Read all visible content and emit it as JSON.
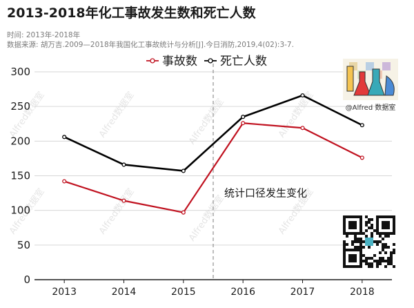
{
  "title": "2013-2018年化工事故发生数和死亡人数",
  "subtitle_time": "时间: 2013年-2018年",
  "subtitle_source": "数据来源: 胡万吉.2009—2018年我国化工事故统计与分析[J].今日消防,2019,4(02):3-7.",
  "logo_caption": "@Alfred 数据室",
  "watermark_text": "Alfred数据室",
  "chart_data": {
    "type": "line",
    "categories": [
      "2013",
      "2014",
      "2015",
      "2016",
      "2017",
      "2018"
    ],
    "series": [
      {
        "name": "事故数",
        "values": [
          142,
          114,
          97,
          226,
          219,
          176
        ],
        "color": "#c0111f",
        "marker": "open-circle"
      },
      {
        "name": "死亡人数",
        "values": [
          206,
          166,
          157,
          235,
          266,
          223
        ],
        "color": "#000000",
        "marker": "open-circle"
      }
    ],
    "ylim": [
      0,
      300
    ],
    "yticks": [
      0,
      50,
      100,
      150,
      200,
      250,
      300
    ],
    "grid": "horizontal",
    "legend": "top-center",
    "divider_between": [
      "2015",
      "2016"
    ],
    "annotation": "统计口径发生变化"
  }
}
